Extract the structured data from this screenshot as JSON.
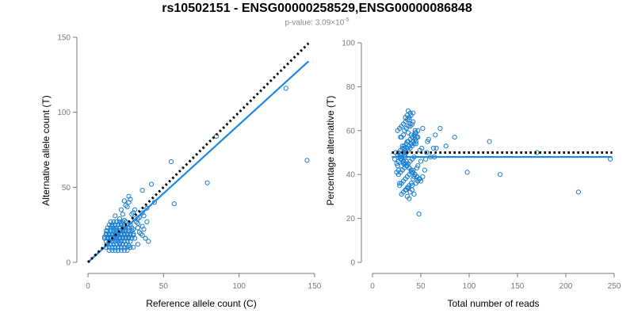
{
  "title": "rs10502151 - ENSG00000258529,ENSG00000086848",
  "subtitle": {
    "prefix": "p-value: 3.09×10",
    "exponent": "-5"
  },
  "colors": {
    "points": "#1a7fd0",
    "fit_line": "#1e88e5",
    "reference_line": "#000000"
  },
  "chart_data": [
    {
      "type": "scatter",
      "xlabel": "Reference allele count (C)",
      "ylabel": "Alternative allele count (T)",
      "xlim": [
        0,
        150
      ],
      "ylim": [
        0,
        150
      ],
      "xticks": [
        0,
        50,
        100,
        150
      ],
      "yticks": [
        0,
        50,
        100,
        150
      ],
      "grid": false,
      "reference_line": {
        "style": "dotted",
        "x": [
          0,
          146
        ],
        "y": [
          0,
          146
        ]
      },
      "fit_line": {
        "style": "solid",
        "x": [
          0,
          146
        ],
        "y": [
          0,
          134
        ]
      },
      "x": [
        145,
        131,
        79,
        55,
        57,
        85,
        42,
        36,
        44,
        39,
        37,
        31,
        33,
        36,
        28,
        39,
        33,
        30,
        30,
        27,
        24,
        21,
        23,
        27,
        18,
        33,
        22,
        28,
        24,
        12,
        13,
        15,
        17,
        19,
        21,
        23,
        25,
        27,
        29,
        12,
        14,
        16,
        18,
        20,
        22,
        24,
        26,
        28,
        30,
        11,
        13,
        15,
        17,
        19,
        21,
        23,
        25,
        27,
        29,
        31,
        12,
        14,
        16,
        18,
        20,
        22,
        24,
        26,
        28,
        13,
        15,
        17,
        19,
        21,
        23,
        25,
        12,
        14,
        16,
        18,
        20,
        22,
        24,
        26,
        28,
        30,
        14,
        16,
        18,
        20,
        22,
        24,
        26,
        11,
        13,
        15,
        17,
        19,
        21,
        23,
        25,
        27,
        12,
        14,
        16,
        18,
        20,
        22,
        24,
        26,
        28,
        30,
        13,
        15,
        17,
        19,
        21,
        23,
        25,
        27,
        29,
        14,
        16,
        18,
        20,
        22,
        24,
        26,
        28,
        15,
        17,
        19,
        21,
        23,
        25,
        34,
        36,
        38,
        40,
        33,
        35,
        37,
        32,
        34,
        36,
        26,
        29,
        31,
        22,
        25,
        28,
        19,
        16,
        21,
        18,
        24,
        27
      ],
      "y": [
        68,
        116,
        53,
        67,
        39,
        84,
        52,
        48,
        40,
        36,
        31,
        35,
        26,
        24,
        10,
        27,
        29,
        22,
        33,
        44,
        41,
        29,
        32,
        40,
        31,
        23,
        26,
        25,
        21,
        21,
        21,
        21,
        21,
        21,
        21,
        21,
        21,
        21,
        21,
        18,
        18,
        18,
        18,
        18,
        18,
        18,
        18,
        18,
        18,
        16,
        16,
        16,
        16,
        16,
        16,
        16,
        16,
        16,
        16,
        16,
        14,
        14,
        14,
        14,
        14,
        14,
        14,
        14,
        14,
        12,
        12,
        12,
        12,
        12,
        12,
        12,
        10,
        10,
        10,
        10,
        10,
        10,
        10,
        10,
        10,
        10,
        8,
        8,
        8,
        8,
        8,
        8,
        8,
        17,
        17,
        17,
        17,
        17,
        17,
        17,
        17,
        17,
        19,
        19,
        19,
        19,
        19,
        19,
        19,
        19,
        19,
        19,
        23,
        23,
        23,
        23,
        23,
        23,
        23,
        23,
        23,
        25,
        25,
        25,
        25,
        25,
        25,
        25,
        25,
        27,
        27,
        27,
        27,
        27,
        27,
        20,
        18,
        16,
        14,
        12,
        19,
        22,
        27,
        30,
        33,
        37,
        32,
        29,
        35,
        38,
        42,
        15,
        24,
        13,
        22,
        28,
        11
      ]
    },
    {
      "type": "scatter",
      "xlabel": "Total number of reads",
      "ylabel": "Percentage alternative (T)",
      "xlim": [
        0,
        250
      ],
      "ylim": [
        0,
        100
      ],
      "xticks": [
        0,
        50,
        100,
        150,
        200,
        250
      ],
      "yticks": [
        0,
        20,
        40,
        60,
        80,
        100
      ],
      "grid": false,
      "reference_line": {
        "style": "dotted",
        "x": [
          20,
          248
        ],
        "y": [
          50,
          50
        ]
      },
      "fit_line": {
        "style": "solid",
        "x": [
          20,
          248
        ],
        "y": [
          48,
          48
        ]
      },
      "x": [
        246,
        213,
        170,
        132,
        121,
        98,
        85,
        76,
        70,
        65,
        63,
        60,
        58,
        56,
        55,
        50,
        48,
        47,
        46,
        45,
        44,
        43,
        42,
        41,
        40,
        39,
        38,
        37,
        36,
        35,
        34,
        33,
        32,
        31,
        30,
        29,
        28,
        27,
        26,
        25,
        24,
        23,
        35,
        37,
        39,
        41,
        43,
        45,
        47,
        49,
        52,
        54,
        30,
        32,
        34,
        36,
        38,
        40,
        42,
        44,
        46,
        48,
        50,
        26,
        28,
        30,
        32,
        34,
        36,
        38,
        40,
        42,
        44,
        46,
        27,
        29,
        31,
        33,
        35,
        37,
        39,
        41,
        43,
        45,
        47,
        49,
        51,
        28,
        30,
        32,
        34,
        36,
        38,
        40,
        42,
        44,
        46,
        25,
        27,
        29,
        31,
        33,
        35,
        37,
        39,
        41,
        43,
        45,
        26,
        28,
        30,
        32,
        34,
        36,
        38,
        40,
        42,
        44,
        27,
        29,
        31,
        33,
        35,
        37,
        39,
        41,
        43,
        28,
        30,
        32,
        34,
        36,
        38,
        40,
        42,
        30,
        32,
        34,
        36,
        38,
        40,
        33,
        35,
        37,
        39,
        42,
        36,
        38,
        41,
        34,
        36,
        39,
        32,
        37,
        29,
        44,
        47,
        52,
        57,
        64,
        66
      ],
      "y": [
        47,
        32,
        50,
        40,
        55,
        41,
        57,
        53,
        61,
        58,
        52,
        48,
        56,
        50,
        47,
        46,
        22,
        44,
        43,
        54,
        57,
        39,
        38,
        63,
        58,
        62,
        65,
        69,
        55,
        46,
        48,
        52,
        45,
        53,
        57,
        49,
        36,
        42,
        44,
        41,
        50,
        47,
        33,
        34,
        32,
        35,
        31,
        36,
        37,
        38,
        39,
        42,
        44,
        46,
        45,
        44,
        43,
        42,
        41,
        40,
        39,
        38,
        37,
        49,
        48,
        47,
        46,
        45,
        44,
        43,
        42,
        41,
        40,
        39,
        50,
        51,
        52,
        53,
        54,
        55,
        56,
        57,
        58,
        59,
        60,
        51,
        52,
        48,
        49,
        50,
        51,
        52,
        53,
        54,
        55,
        56,
        57,
        45,
        46,
        47,
        48,
        49,
        50,
        51,
        52,
        53,
        54,
        55,
        60,
        61,
        62,
        63,
        64,
        65,
        66,
        67,
        68,
        59,
        40,
        41,
        42,
        43,
        44,
        45,
        46,
        47,
        48,
        35,
        36,
        37,
        38,
        39,
        40,
        41,
        42,
        31,
        32,
        33,
        34,
        35,
        36,
        60,
        61,
        62,
        63,
        64,
        30,
        29,
        33,
        66,
        67,
        68,
        58,
        59,
        57,
        60,
        57,
        61,
        55,
        48,
        52
      ]
    }
  ]
}
